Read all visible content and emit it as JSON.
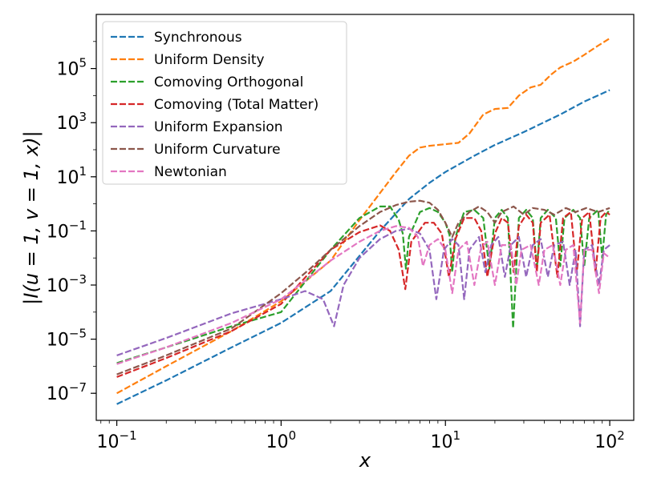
{
  "chart_data": {
    "type": "line",
    "title": "",
    "xlabel": "x",
    "ylabel": "|I(u = 1, v = 1, x)|",
    "xscale": "log",
    "yscale": "log",
    "xlim": [
      0.075,
      140
    ],
    "ylim": [
      1e-08,
      10000000.0
    ],
    "x_ticks": [
      {
        "base": "10",
        "exp": "−1",
        "value": 0.1
      },
      {
        "base": "10",
        "exp": "0",
        "value": 1
      },
      {
        "base": "10",
        "exp": "1",
        "value": 10
      },
      {
        "base": "10",
        "exp": "2",
        "value": 100
      }
    ],
    "y_ticks": [
      {
        "base": "10",
        "exp": "−7",
        "value": 1e-07
      },
      {
        "base": "10",
        "exp": "−5",
        "value": 1e-05
      },
      {
        "base": "10",
        "exp": "−3",
        "value": 0.001
      },
      {
        "base": "10",
        "exp": "−1",
        "value": 0.1
      },
      {
        "base": "10",
        "exp": "1",
        "value": 10
      },
      {
        "base": "10",
        "exp": "3",
        "value": 1000
      },
      {
        "base": "10",
        "exp": "5",
        "value": 100000
      }
    ],
    "legend_position": "top-left",
    "series": [
      {
        "name": "Synchronous",
        "color": "#1f77b4",
        "points": [
          [
            0.1,
            4e-08
          ],
          [
            0.2,
            3e-07
          ],
          [
            0.5,
            5e-06
          ],
          [
            1,
            4e-05
          ],
          [
            2,
            0.0006
          ],
          [
            4,
            0.1
          ],
          [
            6,
            1.5
          ],
          [
            8,
            6
          ],
          [
            10,
            15
          ],
          [
            15,
            60
          ],
          [
            20,
            150
          ],
          [
            30,
            450
          ],
          [
            50,
            2000
          ],
          [
            70,
            6000
          ],
          [
            100,
            16000
          ]
        ]
      },
      {
        "name": "Uniform Density",
        "color": "#ff7f0e",
        "points": [
          [
            0.1,
            1e-07
          ],
          [
            0.2,
            1e-06
          ],
          [
            0.5,
            2e-05
          ],
          [
            1,
            0.00025
          ],
          [
            2,
            0.008
          ],
          [
            3,
            0.25
          ],
          [
            4,
            2.5
          ],
          [
            5,
            15
          ],
          [
            6,
            60
          ],
          [
            7,
            120
          ],
          [
            8,
            140
          ],
          [
            10,
            160
          ],
          [
            12,
            180
          ],
          [
            14,
            400
          ],
          [
            17,
            2000
          ],
          [
            20,
            3200
          ],
          [
            24,
            3500
          ],
          [
            28,
            10000
          ],
          [
            33,
            20000
          ],
          [
            38,
            25000
          ],
          [
            44,
            60000
          ],
          [
            50,
            110000
          ],
          [
            60,
            180000
          ],
          [
            70,
            320000
          ],
          [
            85,
            700000
          ],
          [
            100,
            1300000
          ]
        ]
      },
      {
        "name": "Comoving Orthogonal",
        "color": "#2ca02c",
        "points": [
          [
            0.1,
            1.3e-06
          ],
          [
            0.2,
            5e-06
          ],
          [
            0.5,
            3e-05
          ],
          [
            1,
            0.0001
          ],
          [
            2,
            0.02
          ],
          [
            3,
            0.3
          ],
          [
            4,
            0.8
          ],
          [
            4.6,
            0.8
          ],
          [
            5.2,
            0.25
          ],
          [
            5.5,
            0.08
          ],
          [
            5.75,
            0.004
          ],
          [
            6,
            0.06
          ],
          [
            7,
            0.5
          ],
          [
            8,
            0.7
          ],
          [
            9,
            0.5
          ],
          [
            10,
            0.2
          ],
          [
            10.6,
            0.07
          ],
          [
            11,
            0.003
          ],
          [
            11.5,
            0.06
          ],
          [
            13,
            0.5
          ],
          [
            15,
            0.6
          ],
          [
            17,
            0.3
          ],
          [
            18.5,
            0.004
          ],
          [
            20,
            0.3
          ],
          [
            22,
            0.6
          ],
          [
            24,
            0.3
          ],
          [
            25.8,
            2.5e-05
          ],
          [
            28,
            0.3
          ],
          [
            31,
            0.6
          ],
          [
            34,
            0.3
          ],
          [
            36,
            0.004
          ],
          [
            38,
            0.3
          ],
          [
            42,
            0.6
          ],
          [
            47,
            0.3
          ],
          [
            50,
            0.005
          ],
          [
            53,
            0.3
          ],
          [
            60,
            0.6
          ],
          [
            66,
            0.3
          ],
          [
            70,
            0.005
          ],
          [
            75,
            0.3
          ],
          [
            85,
            0.6
          ],
          [
            90,
            0.01
          ],
          [
            95,
            0.4
          ],
          [
            100,
            0.6
          ]
        ]
      },
      {
        "name": "Comoving (Total Matter)",
        "color": "#d62728",
        "points": [
          [
            0.1,
            4e-07
          ],
          [
            0.2,
            2e-06
          ],
          [
            0.5,
            2e-05
          ],
          [
            1,
            0.0002
          ],
          [
            1.5,
            0.003
          ],
          [
            2,
            0.02
          ],
          [
            3,
            0.09
          ],
          [
            4,
            0.16
          ],
          [
            4.6,
            0.1
          ],
          [
            5.2,
            0.02
          ],
          [
            5.7,
            0.0007
          ],
          [
            6.2,
            0.04
          ],
          [
            7.5,
            0.2
          ],
          [
            8.5,
            0.2
          ],
          [
            9.5,
            0.08
          ],
          [
            10.5,
            0.002
          ],
          [
            11.5,
            0.05
          ],
          [
            13,
            0.3
          ],
          [
            15,
            0.3
          ],
          [
            16.5,
            0.1
          ],
          [
            18,
            0.002
          ],
          [
            20,
            0.08
          ],
          [
            22,
            0.3
          ],
          [
            24,
            0.2
          ],
          [
            26,
            0.003
          ],
          [
            28,
            0.15
          ],
          [
            31,
            0.4
          ],
          [
            34,
            0.2
          ],
          [
            36,
            0.003
          ],
          [
            38,
            0.2
          ],
          [
            43,
            0.4
          ],
          [
            48,
            0.002
          ],
          [
            52,
            0.3
          ],
          [
            58,
            0.5
          ],
          [
            63,
            0.003
          ],
          [
            68,
            0.3
          ],
          [
            75,
            0.5
          ],
          [
            82,
            0.003
          ],
          [
            88,
            0.3
          ],
          [
            95,
            0.5
          ],
          [
            100,
            0.4
          ]
        ]
      },
      {
        "name": "Uniform Expansion",
        "color": "#9467bd",
        "points": [
          [
            0.1,
            2.5e-06
          ],
          [
            0.2,
            1.1e-05
          ],
          [
            0.5,
            9e-05
          ],
          [
            1,
            0.0003
          ],
          [
            1.4,
            0.0006
          ],
          [
            1.8,
            0.0003
          ],
          [
            2.1,
            3e-05
          ],
          [
            2.4,
            0.001
          ],
          [
            3,
            0.01
          ],
          [
            4,
            0.05
          ],
          [
            5,
            0.1
          ],
          [
            6,
            0.12
          ],
          [
            7,
            0.08
          ],
          [
            8,
            0.02
          ],
          [
            8.8,
            0.0003
          ],
          [
            9.8,
            0.02
          ],
          [
            11,
            0.05
          ],
          [
            12,
            0.03
          ],
          [
            13,
            0.0003
          ],
          [
            14,
            0.02
          ],
          [
            16,
            0.06
          ],
          [
            17.5,
            0.003
          ],
          [
            19,
            0.03
          ],
          [
            21,
            0.06
          ],
          [
            23,
            0.002
          ],
          [
            25,
            0.03
          ],
          [
            28,
            0.06
          ],
          [
            31,
            0.002
          ],
          [
            34,
            0.03
          ],
          [
            38,
            0.05
          ],
          [
            42,
            0.002
          ],
          [
            46,
            0.03
          ],
          [
            52,
            0.04
          ],
          [
            57,
            0.001
          ],
          [
            62,
            0.02
          ],
          [
            66,
            3e-05
          ],
          [
            70,
            0.02
          ],
          [
            78,
            0.03
          ],
          [
            86,
            0.001
          ],
          [
            92,
            0.02
          ],
          [
            100,
            0.03
          ]
        ]
      },
      {
        "name": "Uniform Curvature",
        "color": "#8c564b",
        "points": [
          [
            0.1,
            5e-07
          ],
          [
            0.2,
            2.5e-06
          ],
          [
            0.5,
            2.5e-05
          ],
          [
            1,
            0.0005
          ],
          [
            1.5,
            0.004
          ],
          [
            2,
            0.02
          ],
          [
            3,
            0.15
          ],
          [
            4,
            0.5
          ],
          [
            5,
            0.9
          ],
          [
            6,
            1.2
          ],
          [
            7,
            1.3
          ],
          [
            8,
            1.1
          ],
          [
            9,
            0.6
          ],
          [
            10,
            0.2
          ],
          [
            11,
            0.06
          ],
          [
            12,
            0.2
          ],
          [
            14,
            0.5
          ],
          [
            16,
            0.8
          ],
          [
            18,
            0.5
          ],
          [
            20,
            0.2
          ],
          [
            22,
            0.5
          ],
          [
            26,
            0.8
          ],
          [
            30,
            0.4
          ],
          [
            34,
            0.7
          ],
          [
            40,
            0.6
          ],
          [
            46,
            0.4
          ],
          [
            54,
            0.7
          ],
          [
            62,
            0.5
          ],
          [
            72,
            0.7
          ],
          [
            85,
            0.5
          ],
          [
            100,
            0.7
          ]
        ]
      },
      {
        "name": "Newtonian",
        "color": "#e377c2",
        "points": [
          [
            0.1,
            1.2e-06
          ],
          [
            0.2,
            5e-06
          ],
          [
            0.5,
            4e-05
          ],
          [
            1,
            0.0003
          ],
          [
            1.5,
            0.002
          ],
          [
            2,
            0.008
          ],
          [
            3,
            0.04
          ],
          [
            4,
            0.1
          ],
          [
            5,
            0.15
          ],
          [
            6,
            0.13
          ],
          [
            6.8,
            0.06
          ],
          [
            7.3,
            0.005
          ],
          [
            8,
            0.03
          ],
          [
            9,
            0.05
          ],
          [
            10,
            0.02
          ],
          [
            11,
            0.0005
          ],
          [
            12,
            0.02
          ],
          [
            13.5,
            0.04
          ],
          [
            15,
            0.001
          ],
          [
            16.5,
            0.025
          ],
          [
            18,
            0.04
          ],
          [
            20,
            0.001
          ],
          [
            22,
            0.03
          ],
          [
            25,
            0.03
          ],
          [
            27,
            0.001
          ],
          [
            29,
            0.02
          ],
          [
            33,
            0.03
          ],
          [
            37,
            0.001
          ],
          [
            40,
            0.02
          ],
          [
            45,
            0.03
          ],
          [
            50,
            0.001
          ],
          [
            54,
            0.02
          ],
          [
            60,
            0.03
          ],
          [
            66,
            4e-05
          ],
          [
            70,
            0.02
          ],
          [
            78,
            0.02
          ],
          [
            86,
            0.0005
          ],
          [
            92,
            0.015
          ],
          [
            100,
            0.01
          ]
        ]
      }
    ]
  }
}
